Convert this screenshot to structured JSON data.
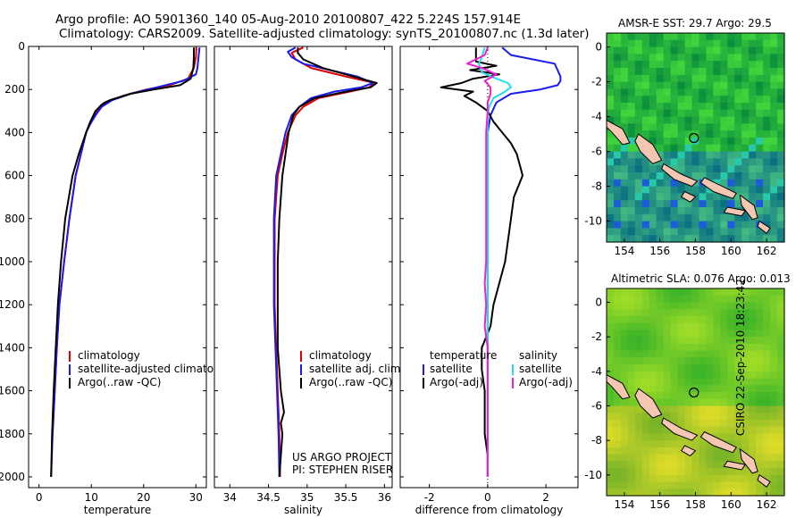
{
  "header": {
    "title_line1": "Argo profile: AO 5901360_140 05-Aug-2010 20100807_422 5.224S 157.914E",
    "title_line2": "Climatology: CARS2009. Satellite-adjusted climatology: synTS_20100807.nc (1.3d later)"
  },
  "side_label": "CSIRO 22-Sep-2010 18:23:42",
  "colors": {
    "climatology": "#dd0000",
    "satellite": "#1a1aee",
    "argo": "#000000",
    "satellite_diff_sal": "#22ddee",
    "argo_diff_sal": "#ee22cc"
  },
  "chart_data": [
    {
      "type": "line",
      "xlabel": "temperature",
      "ylabel": "",
      "xlim": [
        -2,
        32
      ],
      "ylim": [
        2050,
        0
      ],
      "xticks": [
        "0",
        "10",
        "20",
        "30"
      ],
      "yticks": [
        "0",
        "200",
        "400",
        "600",
        "800",
        "1000",
        "1200",
        "1400",
        "1600",
        "1800",
        "2000"
      ],
      "legend": [
        "climatology",
        "satellite-adjusted climatology",
        "Argo(..raw -QC)"
      ],
      "series": [
        {
          "name": "climatology",
          "color": "#dd0000",
          "y": [
            5,
            50,
            100,
            150,
            180,
            200,
            230,
            260,
            300,
            350,
            400,
            500,
            600,
            800,
            1000,
            1200,
            1400,
            1600,
            1800
          ],
          "x": [
            30.1,
            30.0,
            29.6,
            28.5,
            25.0,
            20.5,
            16.0,
            12.5,
            11.0,
            9.8,
            9.0,
            8.0,
            7.0,
            5.8,
            4.8,
            3.9,
            3.4,
            3.0,
            2.6
          ]
        },
        {
          "name": "satellite-adjusted climatology",
          "color": "#1a1aee",
          "y": [
            5,
            50,
            100,
            130,
            160,
            190,
            220,
            250,
            280,
            320,
            360,
            400,
            500,
            600,
            800,
            1000,
            1200,
            1400,
            1600,
            1800,
            2000
          ],
          "x": [
            30.7,
            30.5,
            30.3,
            30.0,
            27.5,
            22.5,
            17.5,
            14.0,
            12.0,
            10.8,
            9.8,
            9.0,
            8.0,
            7.0,
            5.8,
            4.8,
            3.9,
            3.4,
            3.0,
            2.6,
            2.3
          ]
        },
        {
          "name": "Argo(..raw -QC)",
          "color": "#000000",
          "y": [
            5,
            50,
            100,
            150,
            180,
            200,
            220,
            250,
            270,
            300,
            350,
            400,
            500,
            600,
            800,
            1000,
            1200,
            1400,
            1600,
            1800,
            2000
          ],
          "x": [
            29.6,
            29.6,
            29.5,
            29.0,
            27.0,
            22.0,
            17.5,
            13.5,
            12.0,
            10.8,
            9.8,
            9.0,
            7.6,
            6.4,
            5.0,
            4.2,
            3.6,
            3.2,
            2.8,
            2.5,
            2.3
          ]
        }
      ]
    },
    {
      "type": "line",
      "xlabel": "salinity",
      "ylabel": "",
      "xlim": [
        33.8,
        36.1
      ],
      "ylim": [
        2050,
        0
      ],
      "xticks": [
        "34",
        "34.5",
        "35",
        "35.5",
        "36"
      ],
      "legend": [
        "climatology",
        "satellite adj. clim.",
        "Argo(..raw -QC)"
      ],
      "annotation": [
        "US ARGO PROJECT",
        "PI: STEPHEN RISER"
      ],
      "series": [
        {
          "name": "climatology",
          "color": "#dd0000",
          "y": [
            5,
            30,
            60,
            100,
            140,
            170,
            190,
            210,
            240,
            280,
            320,
            400,
            500,
            600,
            800,
            1000,
            1200,
            1400,
            1600,
            1800,
            2000
          ],
          "x": [
            34.95,
            34.8,
            34.85,
            35.05,
            35.5,
            35.88,
            35.8,
            35.55,
            35.15,
            34.95,
            34.85,
            34.75,
            34.68,
            34.62,
            34.58,
            34.58,
            34.58,
            34.6,
            34.62,
            34.64,
            34.65
          ]
        },
        {
          "name": "satellite adj. clim.",
          "color": "#1a1aee",
          "y": [
            5,
            25,
            50,
            80,
            110,
            140,
            170,
            190,
            210,
            240,
            280,
            320,
            400,
            500,
            600,
            800,
            1000,
            1200,
            1400,
            1600,
            1800,
            2000
          ],
          "x": [
            34.85,
            34.75,
            34.8,
            34.95,
            35.3,
            35.65,
            35.85,
            35.7,
            35.35,
            35.05,
            34.9,
            34.8,
            34.72,
            34.66,
            34.6,
            34.57,
            34.57,
            34.57,
            34.59,
            34.61,
            34.63,
            34.64
          ]
        },
        {
          "name": "Argo(..raw -QC)",
          "color": "#000000",
          "y": [
            5,
            30,
            60,
            100,
            140,
            170,
            190,
            210,
            240,
            280,
            320,
            400,
            500,
            600,
            800,
            1000,
            1200,
            1400,
            1600,
            1700,
            1750,
            1800,
            2000
          ],
          "x": [
            34.88,
            34.88,
            34.95,
            35.2,
            35.6,
            35.9,
            35.82,
            35.5,
            35.1,
            34.9,
            34.82,
            34.76,
            34.72,
            34.68,
            34.64,
            34.62,
            34.62,
            34.62,
            34.66,
            34.7,
            34.66,
            34.68,
            34.64
          ]
        }
      ]
    },
    {
      "type": "line",
      "xlabel": "difference from climatology",
      "ylabel": "",
      "xlim": [
        -3,
        3.1
      ],
      "ylim": [
        2050,
        0
      ],
      "xticks": [
        "-2",
        "0",
        "2"
      ],
      "legend_left_title": "temperature",
      "legend_right_title": "salinity",
      "legend_left": [
        "satellite",
        "Argo(-adj)"
      ],
      "legend_right": [
        "satellite",
        "Argo(-adj)"
      ],
      "series": [
        {
          "name": "satellite (temperature)",
          "color": "#1a1aee",
          "y": [
            5,
            40,
            80,
            110,
            140,
            160,
            180,
            200,
            220,
            260,
            320,
            400,
            600,
            800,
            1000,
            1200,
            1400,
            1600,
            1800,
            2000
          ],
          "x": [
            0.5,
            0.8,
            2.3,
            2.4,
            2.5,
            2.5,
            2.4,
            1.8,
            0.8,
            0.3,
            0.1,
            0.0,
            0.0,
            0.0,
            0.0,
            0.0,
            0.0,
            0.0,
            0.0,
            0.0
          ]
        },
        {
          "name": "Argo(-adj) (temperature)",
          "color": "#000000",
          "y": [
            5,
            70,
            90,
            110,
            130,
            150,
            170,
            190,
            210,
            230,
            260,
            300,
            350,
            400,
            450,
            500,
            550,
            600,
            700,
            800,
            900,
            1000,
            1100,
            1200,
            1300,
            1400,
            1500,
            1600,
            1700,
            1800,
            1900,
            2000
          ],
          "x": [
            -0.4,
            -0.4,
            0.3,
            -0.6,
            0.4,
            -0.5,
            -0.9,
            -1.6,
            -0.5,
            -0.8,
            -0.4,
            0.0,
            0.2,
            0.5,
            0.8,
            1.0,
            1.1,
            1.2,
            0.9,
            0.8,
            0.7,
            0.6,
            0.4,
            0.2,
            0.1,
            -0.2,
            -0.2,
            -0.1,
            -0.1,
            -0.1,
            0.0,
            0.0
          ]
        },
        {
          "name": "satellite (salinity)",
          "color": "#22ddee",
          "y": [
            5,
            50,
            80,
            120,
            150,
            170,
            190,
            210,
            240,
            280,
            320,
            400,
            600,
            800,
            1000,
            1200,
            1400,
            1600,
            1800,
            2000
          ],
          "x": [
            -0.1,
            -0.2,
            -0.3,
            -0.2,
            0.3,
            0.7,
            0.8,
            0.6,
            0.2,
            0.05,
            0.0,
            0.0,
            0.0,
            0.0,
            0.0,
            0.0,
            0.0,
            0.0,
            0.0,
            0.0
          ]
        },
        {
          "name": "Argo(-adj) (salinity)",
          "color": "#ee22cc",
          "y": [
            5,
            40,
            80,
            100,
            130,
            160,
            190,
            220,
            260,
            300,
            400,
            500,
            600,
            800,
            1000,
            1100,
            1200,
            1300,
            1400,
            1600,
            1800,
            2000
          ],
          "x": [
            0.0,
            -0.1,
            -0.7,
            -0.2,
            0.3,
            -0.1,
            0.1,
            0.1,
            0.0,
            0.0,
            -0.05,
            -0.05,
            -0.05,
            -0.05,
            -0.05,
            -0.1,
            -0.05,
            -0.1,
            0.0,
            0.0,
            0.0,
            0.0
          ]
        }
      ]
    },
    {
      "type": "heatmap",
      "title": "AMSR-E SST: 29.7 Argo: 29.5",
      "xlim": [
        153,
        163
      ],
      "ylim": [
        -11.2,
        0.8
      ],
      "xticks": [
        "154",
        "156",
        "158",
        "160",
        "162"
      ],
      "yticks": [
        "0",
        "-2",
        "-4",
        "-6",
        "-8",
        "-10"
      ],
      "float_position": [
        157.914,
        -5.224
      ]
    },
    {
      "type": "heatmap",
      "title": "Altimetric SLA: 0.076 Argo: 0.013",
      "xlim": [
        153,
        163
      ],
      "ylim": [
        -11.2,
        0.8
      ],
      "xticks": [
        "154",
        "156",
        "158",
        "160",
        "162"
      ],
      "yticks": [
        "0",
        "-2",
        "-4",
        "-6",
        "-8",
        "-10"
      ],
      "float_position": [
        157.914,
        -5.224
      ]
    }
  ]
}
